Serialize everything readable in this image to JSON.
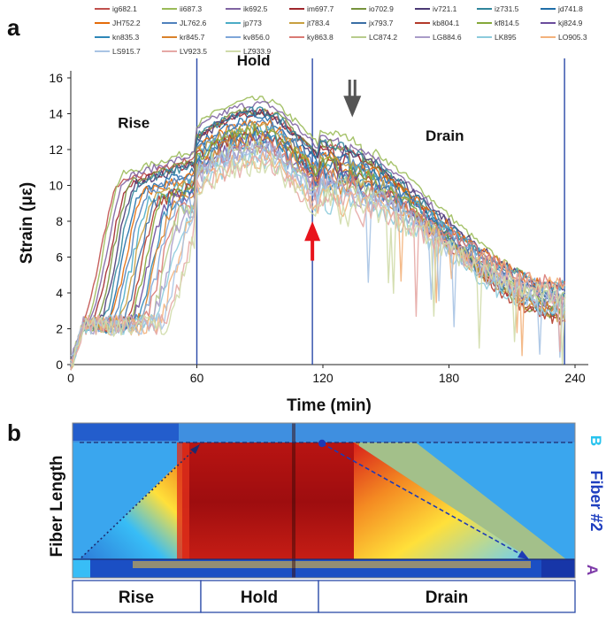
{
  "panel_a": {
    "letter": "a",
    "chart_data": {
      "type": "line",
      "xlabel": "Time (min)",
      "ylabel": "Strain (με)",
      "xlim": [
        0,
        240
      ],
      "ylim": [
        0,
        16
      ],
      "x_ticks": [
        "0",
        "60",
        "120",
        "180",
        "240"
      ],
      "y_ticks": [
        "0",
        "2",
        "4",
        "6",
        "8",
        "10",
        "12",
        "14",
        "16"
      ],
      "phase_boundaries_min": [
        60,
        115,
        235
      ],
      "phase_labels": [
        "Rise",
        "Hold",
        "Drain"
      ],
      "arrow_up_color": "#e8141c",
      "arrow_down_color": "#555555",
      "legend_position": "top",
      "series": [
        {
          "name": "ig682.1",
          "color": "#c0504d"
        },
        {
          "name": "ii687.3",
          "color": "#9bbb59"
        },
        {
          "name": "ik692.5",
          "color": "#8064a2"
        },
        {
          "name": "im697.7",
          "color": "#a0272d"
        },
        {
          "name": "io702.9",
          "color": "#77933c"
        },
        {
          "name": "iv721.1",
          "color": "#4b3a75"
        },
        {
          "name": "iz731.5",
          "color": "#31859c"
        },
        {
          "name": "jd741.8",
          "color": "#1f6ea8"
        },
        {
          "name": "JH752.2",
          "color": "#e46c0a"
        },
        {
          "name": "JL762.6",
          "color": "#4f81bd"
        },
        {
          "name": "jp773",
          "color": "#4bacc6"
        },
        {
          "name": "jt783.4",
          "color": "#c8a040"
        },
        {
          "name": "jx793.7",
          "color": "#3a6ea5"
        },
        {
          "name": "kb804.1",
          "color": "#b33a2a"
        },
        {
          "name": "kf814.5",
          "color": "#84a83a"
        },
        {
          "name": "kj824.9",
          "color": "#6a4c9c"
        },
        {
          "name": "kn835.3",
          "color": "#2e87b8"
        },
        {
          "name": "kr845.7",
          "color": "#d9822b"
        },
        {
          "name": "kv856.0",
          "color": "#7ea6d8"
        },
        {
          "name": "ky863.8",
          "color": "#d97a74"
        },
        {
          "name": "LC874.2",
          "color": "#b8cc8c"
        },
        {
          "name": "LG884.6",
          "color": "#a99cc8"
        },
        {
          "name": "LK895",
          "color": "#8ccbdc"
        },
        {
          "name": "LO905.3",
          "color": "#f3b27c"
        },
        {
          "name": "LS915.7",
          "color": "#a9c4e4"
        },
        {
          "name": "LV923.5",
          "color": "#e6a8a5"
        },
        {
          "name": "LZ933.9",
          "color": "#d0dbaa"
        }
      ]
    }
  },
  "panel_b": {
    "letter": "b",
    "ylabel": "Fiber Length",
    "side_label": "Fiber #2",
    "end_top": "B",
    "end_bottom": "A",
    "phase_labels": [
      "Rise",
      "Hold",
      "Drain"
    ],
    "heatmap_colors": [
      "#1e5bd6",
      "#38bdf6",
      "#ffd21a",
      "#f7361a",
      "#a10f10"
    ]
  }
}
